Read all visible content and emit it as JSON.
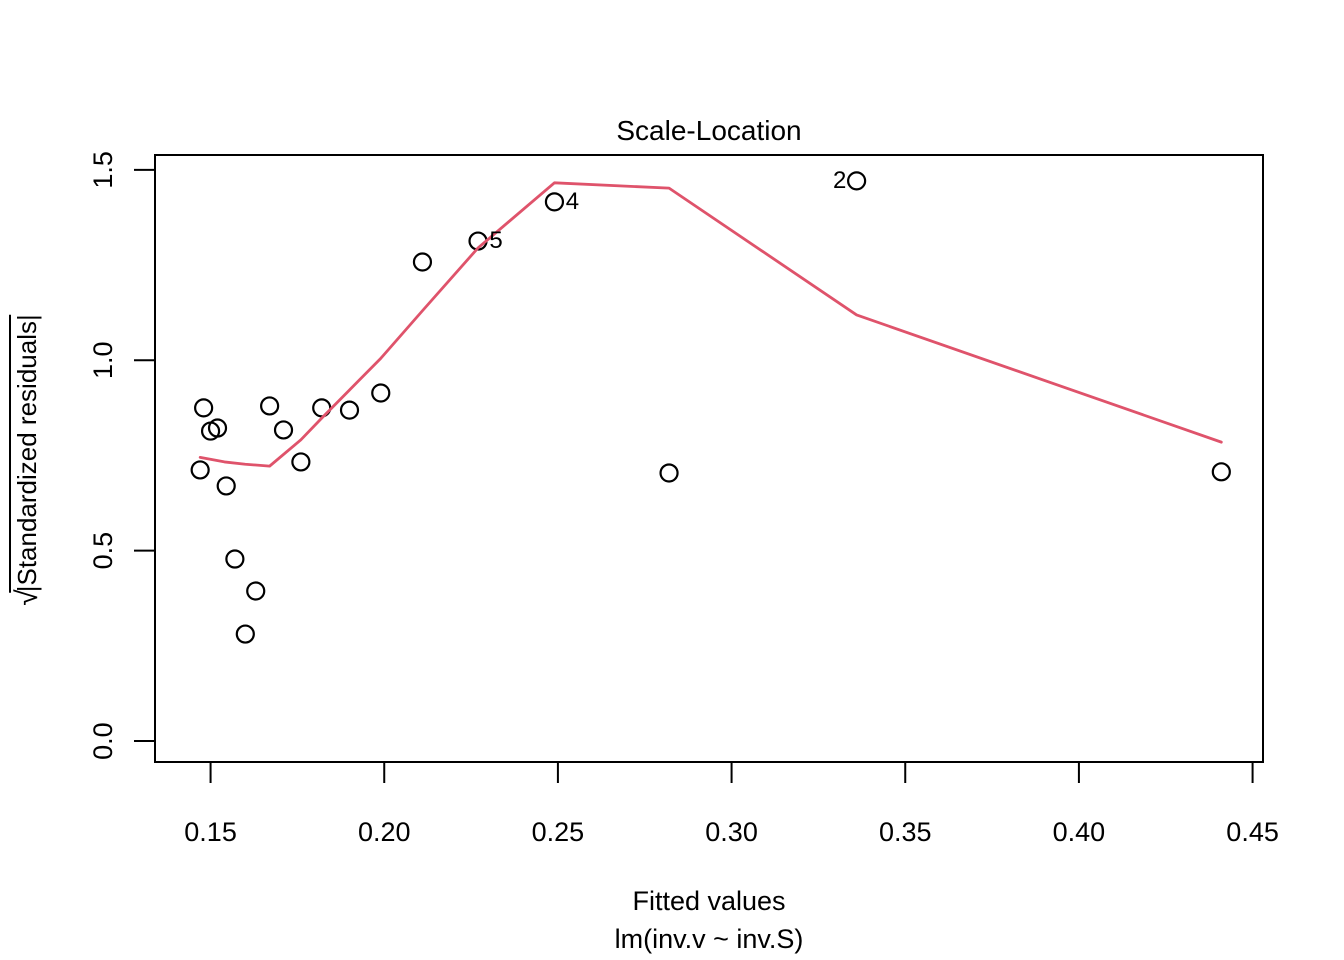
{
  "figure": {
    "title": "Scale-Location",
    "xlabel": "Fitted values",
    "sub_caption": "lm(inv.v ~ inv.S)",
    "ylabel_radical": "√",
    "ylabel_radicand": "|Standardized residuals|"
  },
  "chart_data": {
    "type": "scatter",
    "title": "Scale-Location",
    "xlabel": "Fitted values",
    "model_caption": "lm(inv.v ~ inv.S)",
    "ylabel": "sqrt(|Standardized residuals|)",
    "grid": "off",
    "xlim": [
      0.134,
      0.453
    ],
    "ylim": [
      -0.055,
      1.539
    ],
    "xticks": {
      "values": [
        0.15,
        0.2,
        0.25,
        0.3,
        0.35,
        0.4,
        0.45
      ],
      "labels": [
        "0.15",
        "0.20",
        "0.25",
        "0.30",
        "0.35",
        "0.40",
        "0.45"
      ]
    },
    "yticks": {
      "values": [
        0.0,
        0.5,
        1.0,
        1.5
      ],
      "labels": [
        "0.0",
        "0.5",
        "1.0",
        "1.5"
      ]
    },
    "point_style": {
      "shape": "open-circle",
      "color": "#000000"
    },
    "points": [
      {
        "x": 0.147,
        "y": 0.712
      },
      {
        "x": 0.148,
        "y": 0.875
      },
      {
        "x": 0.15,
        "y": 0.814
      },
      {
        "x": 0.152,
        "y": 0.822
      },
      {
        "x": 0.1545,
        "y": 0.67
      },
      {
        "x": 0.157,
        "y": 0.478
      },
      {
        "x": 0.16,
        "y": 0.281
      },
      {
        "x": 0.163,
        "y": 0.394
      },
      {
        "x": 0.167,
        "y": 0.88
      },
      {
        "x": 0.171,
        "y": 0.817
      },
      {
        "x": 0.176,
        "y": 0.733
      },
      {
        "x": 0.182,
        "y": 0.875
      },
      {
        "x": 0.19,
        "y": 0.869
      },
      {
        "x": 0.199,
        "y": 0.914
      },
      {
        "x": 0.211,
        "y": 1.258
      },
      {
        "x": 0.227,
        "y": 1.313,
        "label": "5",
        "label_side": "right"
      },
      {
        "x": 0.249,
        "y": 1.416,
        "label": "4",
        "label_side": "right"
      },
      {
        "x": 0.282,
        "y": 0.704
      },
      {
        "x": 0.336,
        "y": 1.471,
        "label": "2",
        "label_side": "left"
      },
      {
        "x": 0.441,
        "y": 0.707
      }
    ],
    "smooth_line": {
      "name": "lowess",
      "color": "#DF536B",
      "vertices": [
        [
          0.147,
          0.745
        ],
        [
          0.154,
          0.733
        ],
        [
          0.16,
          0.727
        ],
        [
          0.167,
          0.722
        ],
        [
          0.176,
          0.791
        ],
        [
          0.182,
          0.848
        ],
        [
          0.19,
          0.922
        ],
        [
          0.199,
          1.005
        ],
        [
          0.211,
          1.13
        ],
        [
          0.227,
          1.295
        ],
        [
          0.249,
          1.466
        ],
        [
          0.282,
          1.452
        ],
        [
          0.336,
          1.119
        ],
        [
          0.441,
          0.785
        ]
      ]
    }
  }
}
